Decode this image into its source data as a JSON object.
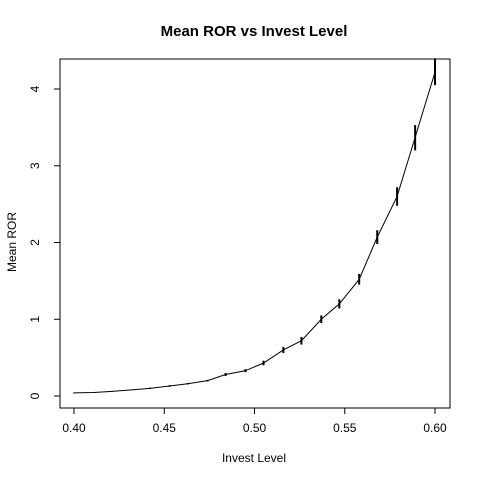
{
  "chart_data": {
    "type": "line",
    "title": "Mean ROR vs Invest Level",
    "xlabel": "Invest Level",
    "ylabel": "Mean ROR",
    "xlim": [
      0.4,
      0.6
    ],
    "ylim": [
      0,
      4.3
    ],
    "xticks": [
      0.4,
      0.45,
      0.5,
      0.55,
      0.6
    ],
    "xtick_labels": [
      "0.40",
      "0.45",
      "0.50",
      "0.55",
      "0.60"
    ],
    "yticks": [
      0,
      1,
      2,
      3,
      4
    ],
    "ytick_labels": [
      "0",
      "1",
      "2",
      "3",
      "4"
    ],
    "grid": false,
    "line_color": "#000000",
    "points": [
      {
        "x": 0.4,
        "y": 0.04,
        "lo": 0.035,
        "hi": 0.045
      },
      {
        "x": 0.411,
        "y": 0.045,
        "lo": 0.04,
        "hi": 0.05
      },
      {
        "x": 0.421,
        "y": 0.06,
        "lo": 0.055,
        "hi": 0.065
      },
      {
        "x": 0.432,
        "y": 0.08,
        "lo": 0.075,
        "hi": 0.085
      },
      {
        "x": 0.442,
        "y": 0.1,
        "lo": 0.09,
        "hi": 0.11
      },
      {
        "x": 0.453,
        "y": 0.13,
        "lo": 0.12,
        "hi": 0.14
      },
      {
        "x": 0.463,
        "y": 0.16,
        "lo": 0.15,
        "hi": 0.17
      },
      {
        "x": 0.474,
        "y": 0.2,
        "lo": 0.19,
        "hi": 0.21
      },
      {
        "x": 0.484,
        "y": 0.28,
        "lo": 0.26,
        "hi": 0.3
      },
      {
        "x": 0.495,
        "y": 0.33,
        "lo": 0.31,
        "hi": 0.35
      },
      {
        "x": 0.505,
        "y": 0.43,
        "lo": 0.4,
        "hi": 0.46
      },
      {
        "x": 0.516,
        "y": 0.6,
        "lo": 0.56,
        "hi": 0.64
      },
      {
        "x": 0.526,
        "y": 0.72,
        "lo": 0.67,
        "hi": 0.77
      },
      {
        "x": 0.537,
        "y": 1.0,
        "lo": 0.95,
        "hi": 1.05
      },
      {
        "x": 0.547,
        "y": 1.2,
        "lo": 1.14,
        "hi": 1.26
      },
      {
        "x": 0.558,
        "y": 1.52,
        "lo": 1.45,
        "hi": 1.59
      },
      {
        "x": 0.568,
        "y": 2.07,
        "lo": 1.98,
        "hi": 2.16
      },
      {
        "x": 0.579,
        "y": 2.6,
        "lo": 2.48,
        "hi": 2.72
      },
      {
        "x": 0.589,
        "y": 3.37,
        "lo": 3.2,
        "hi": 3.53
      },
      {
        "x": 0.6,
        "y": 4.22,
        "lo": 4.05,
        "hi": 4.4
      }
    ]
  }
}
